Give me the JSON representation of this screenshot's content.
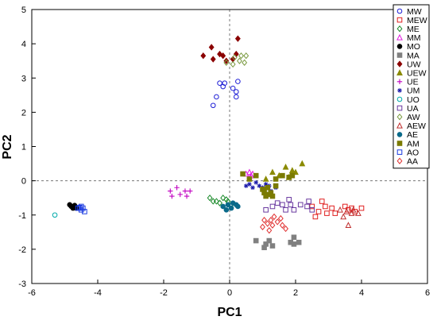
{
  "chart_data": {
    "type": "scatter",
    "xlabel": "PC1",
    "ylabel": "PC2",
    "xlim": [
      -6,
      6
    ],
    "ylim": [
      -3,
      5
    ],
    "xticks": [
      -6,
      -4,
      -2,
      0,
      2,
      4,
      6
    ],
    "yticks": [
      -3,
      -2,
      -1,
      0,
      1,
      2,
      3,
      4,
      5
    ],
    "reference_lines": {
      "x": 0,
      "y": 0,
      "style": "dashed"
    },
    "legend_position": "top-right",
    "series": [
      {
        "name": "MW",
        "color": "#1f1fd6",
        "marker": "circle-open",
        "points": [
          [
            -0.5,
            2.2
          ],
          [
            -0.4,
            2.45
          ],
          [
            -0.3,
            2.85
          ],
          [
            -0.2,
            2.75
          ],
          [
            -0.15,
            2.85
          ],
          [
            0.1,
            2.7
          ],
          [
            0.2,
            2.45
          ],
          [
            0.2,
            2.6
          ],
          [
            0.25,
            2.9
          ]
        ]
      },
      {
        "name": "MEW",
        "color": "#e02020",
        "marker": "square-open",
        "points": [
          [
            2.5,
            -0.75
          ],
          [
            2.6,
            -1.05
          ],
          [
            2.7,
            -0.9
          ],
          [
            2.8,
            -0.6
          ],
          [
            2.9,
            -0.75
          ],
          [
            2.95,
            -0.95
          ],
          [
            3.1,
            -0.8
          ],
          [
            3.2,
            -0.95
          ],
          [
            3.5,
            -0.75
          ],
          [
            3.6,
            -0.85
          ],
          [
            3.7,
            -0.8
          ],
          [
            3.8,
            -0.9
          ],
          [
            4.0,
            -0.8
          ]
        ]
      },
      {
        "name": "ME",
        "color": "#1a8a2a",
        "marker": "diamond-open",
        "points": [
          [
            -0.6,
            -0.5
          ],
          [
            -0.5,
            -0.6
          ],
          [
            -0.4,
            -0.6
          ],
          [
            -0.3,
            -0.65
          ],
          [
            -0.2,
            -0.5
          ],
          [
            -0.1,
            -0.55
          ],
          [
            -0.05,
            -0.6
          ],
          [
            0.05,
            -0.7
          ]
        ]
      },
      {
        "name": "MM",
        "color": "#e020e0",
        "marker": "triangle-open",
        "points": [
          [
            0.5,
            0.2
          ],
          [
            0.6,
            0.25
          ],
          [
            0.65,
            0.15
          ],
          [
            0.7,
            0.2
          ]
        ]
      },
      {
        "name": "MO",
        "color": "#000000",
        "marker": "circle-filled",
        "points": [
          [
            -4.85,
            -0.7
          ],
          [
            -4.8,
            -0.75
          ],
          [
            -4.75,
            -0.8
          ],
          [
            -4.7,
            -0.72
          ],
          [
            -4.65,
            -0.8
          ]
        ]
      },
      {
        "name": "MA",
        "color": "#808080",
        "marker": "square-filled",
        "points": [
          [
            0.8,
            -1.75
          ],
          [
            1.05,
            -1.95
          ],
          [
            1.1,
            -1.85
          ],
          [
            1.2,
            -1.75
          ],
          [
            1.3,
            -1.9
          ],
          [
            1.85,
            -1.8
          ],
          [
            1.95,
            -1.65
          ],
          [
            1.95,
            -1.85
          ],
          [
            2.1,
            -1.8
          ]
        ]
      },
      {
        "name": "UW",
        "color": "#8b0000",
        "marker": "diamond-filled",
        "points": [
          [
            -0.8,
            3.65
          ],
          [
            -0.55,
            3.9
          ],
          [
            -0.5,
            3.55
          ],
          [
            -0.3,
            3.7
          ],
          [
            -0.2,
            3.65
          ],
          [
            -0.1,
            3.5
          ],
          [
            0.1,
            3.55
          ],
          [
            0.2,
            3.7
          ],
          [
            0.25,
            4.15
          ]
        ]
      },
      {
        "name": "UEW",
        "color": "#8a8a00",
        "marker": "triangle-filled",
        "points": [
          [
            1.1,
            0.05
          ],
          [
            1.3,
            0.25
          ],
          [
            1.5,
            0.15
          ],
          [
            1.7,
            0.4
          ],
          [
            1.8,
            0.1
          ],
          [
            1.9,
            0.3
          ],
          [
            2.0,
            0.25
          ],
          [
            2.2,
            0.5
          ]
        ]
      },
      {
        "name": "UE",
        "color": "#c000c0",
        "marker": "plus",
        "points": [
          [
            -1.8,
            -0.3
          ],
          [
            -1.75,
            -0.45
          ],
          [
            -1.6,
            -0.2
          ],
          [
            -1.5,
            -0.4
          ],
          [
            -1.35,
            -0.3
          ],
          [
            -1.3,
            -0.45
          ],
          [
            -1.2,
            -0.3
          ]
        ]
      },
      {
        "name": "UM",
        "color": "#1a1aaa",
        "marker": "star",
        "points": [
          [
            0.5,
            -0.15
          ],
          [
            0.6,
            -0.1
          ],
          [
            0.7,
            -0.2
          ],
          [
            0.8,
            -0.05
          ],
          [
            0.9,
            -0.15
          ],
          [
            1.0,
            -0.2
          ],
          [
            1.1,
            -0.1
          ],
          [
            1.2,
            -0.15
          ],
          [
            1.25,
            -0.3
          ],
          [
            1.4,
            -0.2
          ]
        ]
      },
      {
        "name": "UO",
        "color": "#00aaaa",
        "marker": "circle-open",
        "points": [
          [
            -5.3,
            -1.0
          ]
        ]
      },
      {
        "name": "UA",
        "color": "#6a3aa0",
        "marker": "square-open",
        "points": [
          [
            1.1,
            -0.85
          ],
          [
            1.3,
            -0.75
          ],
          [
            1.45,
            -0.65
          ],
          [
            1.6,
            -0.7
          ],
          [
            1.7,
            -0.85
          ],
          [
            1.8,
            -0.55
          ],
          [
            1.85,
            -0.7
          ],
          [
            1.95,
            -0.85
          ],
          [
            2.15,
            -0.7
          ],
          [
            2.35,
            -0.75
          ],
          [
            2.4,
            -0.6
          ],
          [
            2.5,
            -0.85
          ]
        ]
      },
      {
        "name": "AW",
        "color": "#7a9a40",
        "marker": "diamond-open",
        "points": [
          [
            -0.1,
            3.45
          ],
          [
            0.1,
            3.4
          ],
          [
            0.15,
            3.6
          ],
          [
            0.3,
            3.5
          ],
          [
            0.35,
            3.65
          ],
          [
            0.45,
            3.45
          ],
          [
            0.5,
            3.65
          ]
        ]
      },
      {
        "name": "AEW",
        "color": "#c03030",
        "marker": "triangle-open",
        "points": [
          [
            3.35,
            -0.85
          ],
          [
            3.45,
            -1.05
          ],
          [
            3.55,
            -0.9
          ],
          [
            3.6,
            -1.3
          ],
          [
            3.7,
            -0.95
          ],
          [
            3.75,
            -0.85
          ],
          [
            3.9,
            -0.95
          ]
        ]
      },
      {
        "name": "AE",
        "color": "#0a6a8a",
        "marker": "circle-filled",
        "points": [
          [
            -0.2,
            -0.75
          ],
          [
            -0.1,
            -0.85
          ],
          [
            -0.05,
            -0.7
          ],
          [
            0.05,
            -0.8
          ],
          [
            0.1,
            -0.65
          ],
          [
            0.2,
            -0.7
          ],
          [
            0.25,
            -0.75
          ]
        ]
      },
      {
        "name": "AM",
        "color": "#7a7a00",
        "marker": "square-filled",
        "points": [
          [
            0.4,
            0.2
          ],
          [
            0.6,
            0.05
          ],
          [
            0.8,
            0.15
          ],
          [
            1.0,
            -0.25
          ],
          [
            1.05,
            -0.35
          ],
          [
            1.1,
            -0.45
          ],
          [
            1.15,
            -0.2
          ],
          [
            1.2,
            -0.4
          ],
          [
            1.25,
            -0.35
          ],
          [
            1.3,
            -0.45
          ],
          [
            1.4,
            0.05
          ],
          [
            1.4,
            -0.15
          ],
          [
            1.6,
            0.15
          ],
          [
            1.8,
            0.1
          ],
          [
            1.9,
            0.15
          ]
        ]
      },
      {
        "name": "AO",
        "color": "#1a3ae0",
        "marker": "square-open",
        "points": [
          [
            -4.6,
            -0.8
          ],
          [
            -4.55,
            -0.78
          ],
          [
            -4.5,
            -0.85
          ],
          [
            -4.45,
            -0.8
          ],
          [
            -4.4,
            -0.9
          ],
          [
            -4.5,
            -0.75
          ]
        ]
      },
      {
        "name": "AA",
        "color": "#e03030",
        "marker": "diamond-open",
        "points": [
          [
            1.0,
            -1.35
          ],
          [
            1.05,
            -1.15
          ],
          [
            1.15,
            -1.25
          ],
          [
            1.2,
            -1.45
          ],
          [
            1.25,
            -1.15
          ],
          [
            1.3,
            -1.3
          ],
          [
            1.35,
            -1.05
          ],
          [
            1.45,
            -1.2
          ],
          [
            1.55,
            -1.1
          ],
          [
            1.6,
            -1.3
          ],
          [
            1.7,
            -1.4
          ]
        ]
      }
    ]
  }
}
